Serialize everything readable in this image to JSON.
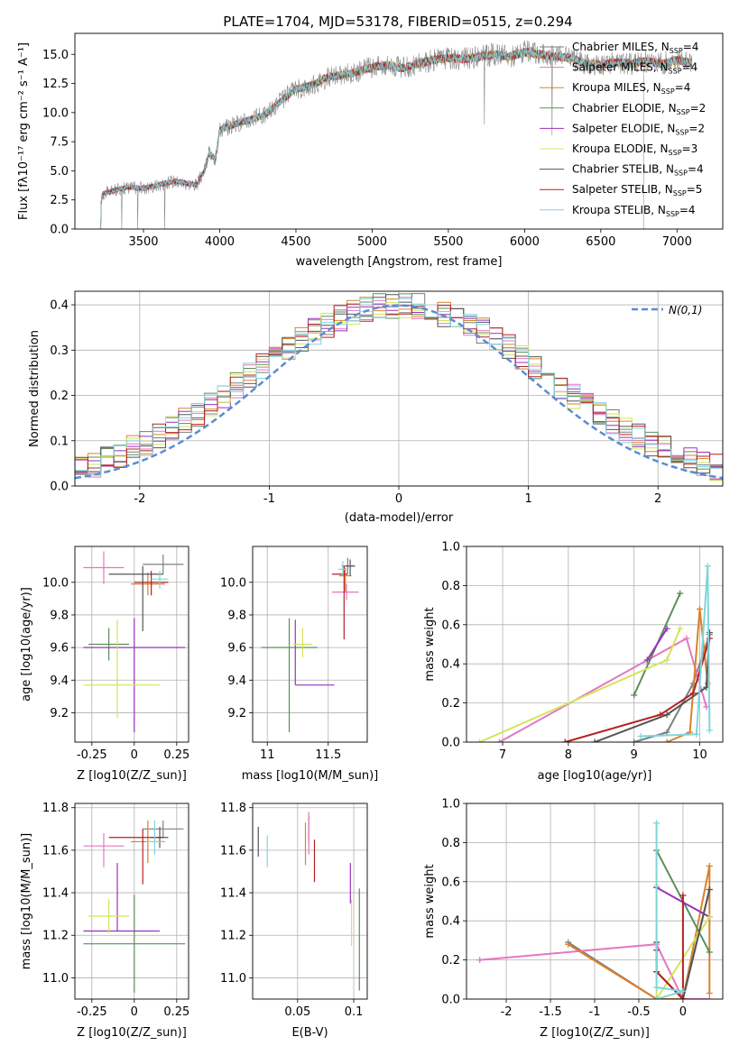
{
  "figure": {
    "title": "PLATE=1704, MJD=53178, FIBERID=0515, z=0.294"
  },
  "model_colors": [
    "#7f7f7f",
    "#e377c2",
    "#d9822b",
    "#5a8f5a",
    "#9932b8",
    "#d4e35a",
    "#555555",
    "#b22222",
    "#7fd6dc"
  ],
  "chart_data": [
    {
      "id": "spectrum",
      "type": "line",
      "title": "PLATE=1704, MJD=53178, FIBERID=0515, z=0.294",
      "xlabel": "wavelength [Angstrom, rest frame]",
      "ylabel": "Flux [f_λ 10^-17 erg cm^-2 s^-1 A^-1]",
      "xlim": [
        3050,
        7300
      ],
      "ylim": [
        0,
        16.8
      ],
      "xticks": [
        3500,
        4000,
        4500,
        5000,
        5500,
        6000,
        6500,
        7000
      ],
      "yticks": [
        0.0,
        2.5,
        5.0,
        7.5,
        10.0,
        12.5,
        15.0
      ],
      "grid": false,
      "legend_position": "top-right",
      "x": [
        3200,
        3230,
        3300,
        3400,
        3500,
        3600,
        3700,
        3800,
        3850,
        3900,
        3930,
        3970,
        4000,
        4100,
        4200,
        4300,
        4400,
        4500,
        4600,
        4700,
        4800,
        4900,
        5000,
        5100,
        5200,
        5300,
        5400,
        5500,
        5600,
        5700,
        5800,
        5900,
        6000,
        6100,
        6200,
        6300,
        6400,
        6500,
        6600,
        6700,
        6800,
        6900,
        7000,
        7100
      ],
      "y": [
        0.0,
        3.0,
        3.3,
        3.6,
        3.5,
        3.8,
        4.1,
        3.9,
        3.8,
        5.0,
        6.5,
        6.0,
        8.5,
        9.0,
        9.4,
        9.8,
        11.0,
        12.0,
        12.3,
        13.0,
        13.2,
        13.5,
        13.9,
        14.1,
        13.8,
        14.2,
        14.5,
        14.7,
        14.6,
        14.8,
        15.0,
        14.8,
        15.2,
        15.0,
        14.8,
        14.7,
        14.2,
        14.1,
        14.3,
        14.2,
        14.4,
        14.2,
        14.5,
        14.3
      ],
      "series": [
        {
          "name": "Chabrier MILES, N_SSP=4",
          "name_main": "Chabrier MILES, N",
          "name_sub": "SSP",
          "name_tail": "=4"
        },
        {
          "name": "Salpeter MILES, N_SSP=4",
          "name_main": "Salpeter MILES, N",
          "name_sub": "SSP",
          "name_tail": "=4"
        },
        {
          "name": "Kroupa MILES, N_SSP=4",
          "name_main": "Kroupa MILES, N",
          "name_sub": "SSP",
          "name_tail": "=4"
        },
        {
          "name": "Chabrier ELODIE, N_SSP=2",
          "name_main": "Chabrier ELODIE, N",
          "name_sub": "SSP",
          "name_tail": "=2"
        },
        {
          "name": "Salpeter ELODIE, N_SSP=2",
          "name_main": "Salpeter ELODIE, N",
          "name_sub": "SSP",
          "name_tail": "=2"
        },
        {
          "name": "Kroupa ELODIE, N_SSP=3",
          "name_main": "Kroupa ELODIE, N",
          "name_sub": "SSP",
          "name_tail": "=3"
        },
        {
          "name": "Chabrier STELIB, N_SSP=4",
          "name_main": "Chabrier STELIB, N",
          "name_sub": "SSP",
          "name_tail": "=4"
        },
        {
          "name": "Salpeter STELIB, N_SSP=5",
          "name_main": "Salpeter STELIB, N",
          "name_sub": "SSP",
          "name_tail": "=5"
        },
        {
          "name": "Kroupa STELIB, N_SSP=4",
          "name_main": "Kroupa STELIB, N",
          "name_sub": "SSP",
          "name_tail": "=4"
        }
      ]
    },
    {
      "id": "residuals",
      "type": "step",
      "xlabel": "(data-model)/error",
      "ylabel": "Normed distribution",
      "xlim": [
        -2.5,
        2.5
      ],
      "ylim": [
        0,
        0.43
      ],
      "xticks": [
        -2,
        -1,
        0,
        1,
        2
      ],
      "yticks": [
        0.0,
        0.1,
        0.2,
        0.3,
        0.4
      ],
      "grid": true,
      "legend_position": "top-right",
      "reference_label": "N(0,1)",
      "reference_color": "#5b8bd4",
      "bin_width": 0.1,
      "bin_start": -2.5
    },
    {
      "id": "age-vs-Z",
      "type": "errorbar",
      "xlabel": "Z [log10(Z/Z_sun)]",
      "ylabel": "age [log10(age/yr)]",
      "xlim": [
        -0.35,
        0.32
      ],
      "ylim": [
        9.02,
        10.22
      ],
      "xticks": [
        -0.25,
        0.0,
        0.25
      ],
      "yticks": [
        9.2,
        9.4,
        9.6,
        9.8,
        10.0
      ],
      "grid": true,
      "points": [
        {
          "x": 0.17,
          "y": 10.11,
          "xerr": [
            0.12,
            0.12
          ],
          "yerr": [
            0.06,
            0.06
          ]
        },
        {
          "x": -0.18,
          "y": 10.09,
          "xerr": [
            0.12,
            0.12
          ],
          "yerr": [
            0.1,
            0.1
          ]
        },
        {
          "x": 0.08,
          "y": 9.99,
          "xerr": [
            0.1,
            0.1
          ],
          "yerr": [
            0.07,
            0.07
          ]
        },
        {
          "x": -0.15,
          "y": 9.62,
          "xerr": [
            0.12,
            0.12
          ],
          "yerr": [
            0.1,
            0.1
          ]
        },
        {
          "x": 0.0,
          "y": 9.6,
          "xerr": [
            0.3,
            0.3
          ],
          "yerr": [
            0.52,
            0.18
          ]
        },
        {
          "x": -0.1,
          "y": 9.37,
          "xerr": [
            0.2,
            0.25
          ],
          "yerr": [
            0.2,
            0.4
          ]
        },
        {
          "x": 0.05,
          "y": 10.05,
          "xerr": [
            0.2,
            0.12
          ],
          "yerr": [
            0.35,
            0.05
          ]
        },
        {
          "x": 0.1,
          "y": 10.0,
          "xerr": [
            0.1,
            0.1
          ],
          "yerr": [
            0.08,
            0.07
          ]
        },
        {
          "x": 0.15,
          "y": 10.02,
          "xerr": [
            0.05,
            0.05
          ],
          "yerr": [
            0.06,
            0.05
          ]
        }
      ]
    },
    {
      "id": "age-vs-mass",
      "type": "errorbar",
      "xlabel": "mass [log10(M/M_sun)]",
      "ylabel": "",
      "xlim": [
        10.88,
        11.82
      ],
      "ylim": [
        9.02,
        10.22
      ],
      "xticks": [
        11.0,
        11.5
      ],
      "yticks": [
        9.2,
        9.4,
        9.6,
        9.8,
        10.0
      ],
      "grid": true,
      "points": [
        {
          "x": 11.66,
          "y": 10.1,
          "xerr": [
            0.05,
            0.05
          ],
          "yerr": [
            0.05,
            0.05
          ]
        },
        {
          "x": 11.65,
          "y": 9.94,
          "xerr": [
            0.12,
            0.1
          ],
          "yerr": [
            0.05,
            0.05
          ]
        },
        {
          "x": 11.64,
          "y": 10.04,
          "xerr": [
            0.05,
            0.05
          ],
          "yerr": [
            0.1,
            0.05
          ]
        },
        {
          "x": 11.18,
          "y": 9.6,
          "xerr": [
            0.23,
            0.23
          ],
          "yerr": [
            0.52,
            0.18
          ]
        },
        {
          "x": 11.23,
          "y": 9.37,
          "xerr": [
            0.0,
            0.32
          ],
          "yerr": [
            0.0,
            0.4
          ]
        },
        {
          "x": 11.29,
          "y": 9.62,
          "xerr": [
            0.08,
            0.08
          ],
          "yerr": [
            0.08,
            0.1
          ]
        },
        {
          "x": 11.68,
          "y": 10.1,
          "xerr": [
            0.04,
            0.04
          ],
          "yerr": [
            0.06,
            0.04
          ]
        },
        {
          "x": 11.63,
          "y": 10.05,
          "xerr": [
            0.1,
            0.03
          ],
          "yerr": [
            0.4,
            0.05
          ]
        },
        {
          "x": 11.62,
          "y": 10.08,
          "xerr": [
            0.04,
            0.04
          ],
          "yerr": [
            0.04,
            0.05
          ]
        }
      ]
    },
    {
      "id": "weight-vs-age",
      "type": "line",
      "xlabel": "age [log10(age/yr)]",
      "ylabel": "mass weight",
      "xlim": [
        6.45,
        10.35
      ],
      "ylim": [
        0,
        1.0
      ],
      "xticks": [
        7,
        8,
        9,
        10
      ],
      "yticks": [
        0.0,
        0.2,
        0.4,
        0.6,
        0.8,
        1.0
      ],
      "grid": true,
      "series": [
        {
          "x": [
            9.0,
            9.5,
            9.9,
            10.15
          ],
          "y": [
            0.0,
            0.05,
            0.3,
            0.55
          ]
        },
        {
          "x": [
            6.95,
            9.8,
            10.1
          ],
          "y": [
            0.0,
            0.53,
            0.18
          ]
        },
        {
          "x": [
            9.5,
            9.85,
            10.0,
            10.12
          ],
          "y": [
            0.0,
            0.05,
            0.68,
            0.3
          ]
        },
        {
          "x": [
            9.0,
            9.7
          ],
          "y": [
            0.24,
            0.76
          ]
        },
        {
          "x": [
            9.2,
            9.5
          ],
          "y": [
            0.42,
            0.58
          ]
        },
        {
          "x": [
            6.65,
            9.5,
            9.7
          ],
          "y": [
            0.0,
            0.42,
            0.58
          ]
        },
        {
          "x": [
            8.4,
            9.5,
            10.1,
            10.15
          ],
          "y": [
            0.0,
            0.14,
            0.28,
            0.56
          ]
        },
        {
          "x": [
            7.95,
            9.4,
            9.9,
            10.15
          ],
          "y": [
            0.0,
            0.14,
            0.25,
            0.53
          ]
        },
        {
          "x": [
            9.1,
            9.95,
            10.12,
            10.15
          ],
          "y": [
            0.03,
            0.04,
            0.9,
            0.06
          ]
        }
      ]
    },
    {
      "id": "mass-vs-Z",
      "type": "errorbar",
      "xlabel": "Z [log10(Z/Z_sun)]",
      "ylabel": "mass [log10(M/M_sun)]",
      "xlim": [
        -0.35,
        0.32
      ],
      "ylim": [
        10.9,
        11.82
      ],
      "xticks": [
        -0.25,
        0.0,
        0.25
      ],
      "yticks": [
        11.0,
        11.2,
        11.4,
        11.6,
        11.8
      ],
      "grid": true,
      "points": [
        {
          "x": 0.17,
          "y": 11.7,
          "xerr": [
            0.12,
            0.12
          ],
          "yerr": [
            0.04,
            0.04
          ]
        },
        {
          "x": -0.18,
          "y": 11.62,
          "xerr": [
            0.12,
            0.12
          ],
          "yerr": [
            0.1,
            0.06
          ]
        },
        {
          "x": 0.08,
          "y": 11.64,
          "xerr": [
            0.1,
            0.1
          ],
          "yerr": [
            0.1,
            0.1
          ]
        },
        {
          "x": 0.0,
          "y": 11.16,
          "xerr": [
            0.3,
            0.3
          ],
          "yerr": [
            0.23,
            0.23
          ]
        },
        {
          "x": -0.1,
          "y": 11.22,
          "xerr": [
            0.2,
            0.25
          ],
          "yerr": [
            0.0,
            0.32
          ]
        },
        {
          "x": -0.15,
          "y": 11.29,
          "xerr": [
            0.12,
            0.12
          ],
          "yerr": [
            0.08,
            0.08
          ]
        },
        {
          "x": 0.15,
          "y": 11.66,
          "xerr": [
            0.05,
            0.05
          ],
          "yerr": [
            0.05,
            0.05
          ]
        },
        {
          "x": 0.05,
          "y": 11.66,
          "xerr": [
            0.2,
            0.12
          ],
          "yerr": [
            0.22,
            0.04
          ]
        },
        {
          "x": 0.12,
          "y": 11.64,
          "xerr": [
            0.05,
            0.05
          ],
          "yerr": [
            0.06,
            0.1
          ]
        }
      ]
    },
    {
      "id": "mass-vs-EBV",
      "type": "errorbar",
      "xlabel": "E(B-V)",
      "ylabel": "",
      "xlim": [
        0.01,
        0.112
      ],
      "ylim": [
        10.9,
        11.82
      ],
      "xticks": [
        0.05,
        0.1
      ],
      "yticks": [
        11.0,
        11.2,
        11.4,
        11.6,
        11.8
      ],
      "grid": true,
      "points": [
        {
          "x": 0.06,
          "y": 11.7,
          "xerr": [
            0.0,
            0.0
          ],
          "yerr": [
            0.06,
            0.06
          ]
        },
        {
          "x": 0.06,
          "y": 11.66,
          "xerr": [
            0.0,
            0.0
          ],
          "yerr": [
            0.08,
            0.12
          ]
        },
        {
          "x": 0.057,
          "y": 11.63,
          "xerr": [
            0.0,
            0.0
          ],
          "yerr": [
            0.1,
            0.1
          ]
        },
        {
          "x": 0.105,
          "y": 11.17,
          "xerr": [
            0.0,
            0.0
          ],
          "yerr": [
            0.23,
            0.25
          ]
        },
        {
          "x": 0.097,
          "y": 11.4,
          "xerr": [
            0.0,
            0.0
          ],
          "yerr": [
            0.05,
            0.14
          ]
        },
        {
          "x": 0.098,
          "y": 11.25,
          "xerr": [
            0.0,
            0.0
          ],
          "yerr": [
            0.1,
            0.12
          ]
        },
        {
          "x": 0.015,
          "y": 11.63,
          "xerr": [
            0.0,
            0.0
          ],
          "yerr": [
            0.06,
            0.08
          ]
        },
        {
          "x": 0.065,
          "y": 11.55,
          "xerr": [
            0.0,
            0.0
          ],
          "yerr": [
            0.1,
            0.1
          ]
        },
        {
          "x": 0.023,
          "y": 11.59,
          "xerr": [
            0.0,
            0.0
          ],
          "yerr": [
            0.07,
            0.08
          ]
        }
      ]
    },
    {
      "id": "weight-vs-Z",
      "type": "line",
      "xlabel": "Z [log10(Z/Z_sun)]",
      "ylabel": "mass weight",
      "xlim": [
        -2.45,
        0.45
      ],
      "ylim": [
        0,
        1.0
      ],
      "xticks": [
        -2.0,
        -1.5,
        -1.0,
        -0.5,
        0.0
      ],
      "yticks": [
        0.0,
        0.2,
        0.4,
        0.6,
        0.8,
        1.0
      ],
      "grid": true,
      "series": [
        {
          "x": [
            -1.3,
            -0.3,
            0.0,
            0.3
          ],
          "y": [
            0.29,
            0.0,
            0.0,
            0.56
          ]
        },
        {
          "x": [
            -2.3,
            -0.3,
            0.0,
            0.3
          ],
          "y": [
            0.2,
            0.28,
            0.0,
            0.0
          ]
        },
        {
          "x": [
            -1.3,
            -0.3,
            0.0,
            0.3,
            0.3
          ],
          "y": [
            0.28,
            0.0,
            0.0,
            0.68,
            0.03
          ]
        },
        {
          "x": [
            -0.3,
            0.3
          ],
          "y": [
            0.76,
            0.24
          ]
        },
        {
          "x": [
            -0.3,
            0.3
          ],
          "y": [
            0.57,
            0.42
          ]
        },
        {
          "x": [
            -0.3,
            -0.3,
            0.3
          ],
          "y": [
            0.58,
            0.0,
            0.42
          ]
        },
        {
          "x": [
            -0.3,
            -0.3,
            0.0,
            0.3
          ],
          "y": [
            0.29,
            0.14,
            0.0,
            0.56
          ]
        },
        {
          "x": [
            -0.3,
            -0.3,
            0.0,
            0.0
          ],
          "y": [
            0.25,
            0.14,
            0.0,
            0.53
          ]
        },
        {
          "x": [
            -0.3,
            -0.3,
            0.0,
            -0.3
          ],
          "y": [
            0.9,
            0.06,
            0.04,
            0.0
          ]
        }
      ]
    }
  ]
}
